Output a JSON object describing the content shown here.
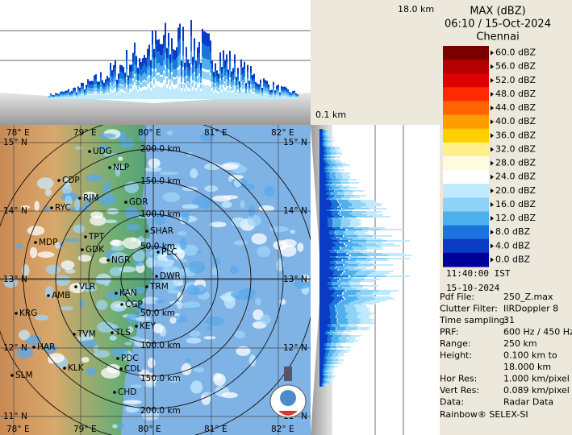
{
  "header": {
    "title": "MAX (dBZ)",
    "datetime": "06:10 / 15-Oct-2024",
    "station": "Chennai"
  },
  "profile_labels": {
    "top_height": "18.0 km",
    "bottom_height": "0.1 km"
  },
  "legend": {
    "entries": [
      {
        "label": "60.0 dBZ",
        "color": "#7a0000"
      },
      {
        "label": "56.0 dBZ",
        "color": "#b40000"
      },
      {
        "label": "52.0 dBZ",
        "color": "#e00000"
      },
      {
        "label": "48.0 dBZ",
        "color": "#ff2a00"
      },
      {
        "label": "44.0 dBZ",
        "color": "#ff6400"
      },
      {
        "label": "40.0 dBZ",
        "color": "#ff9c00"
      },
      {
        "label": "36.0 dBZ",
        "color": "#ffd000"
      },
      {
        "label": "32.0 dBZ",
        "color": "#fff08c"
      },
      {
        "label": "28.0 dBZ",
        "color": "#fffbe0"
      },
      {
        "label": "24.0 dBZ",
        "color": "#ffffff"
      },
      {
        "label": "20.0 dBZ",
        "color": "#bfe9ff"
      },
      {
        "label": "16.0 dBZ",
        "color": "#8fd2f7"
      },
      {
        "label": "12.0 dBZ",
        "color": "#4fb0ee"
      },
      {
        "label": "8.0 dBZ",
        "color": "#1a74db"
      },
      {
        "label": "4.0 dBZ",
        "color": "#0a3bc4"
      },
      {
        "label": "0.0 dBZ",
        "color": "#00009a"
      }
    ]
  },
  "time": "11:40:00  IST",
  "date": "15-10-2024",
  "info": [
    [
      "Pdf File:",
      "250_Z.max"
    ],
    [
      "Clutter Filter:",
      "IIRDoppler 8"
    ],
    [
      "Time sampling:",
      "31"
    ],
    [
      "PRF:",
      "600 Hz / 450 Hz"
    ],
    [
      "Range:",
      "250 km"
    ],
    [
      "Height:",
      "0.100 km to"
    ],
    [
      "",
      "18.000 km"
    ],
    [
      "Hor Res:",
      "1.000 km/pixel"
    ],
    [
      "Vert Res:",
      "0.089 km/pixel"
    ],
    [
      "Data:",
      "Radar Data"
    ]
  ],
  "footer": "Rainbow® SELEX-SI",
  "map": {
    "longitudes": [
      "78° E",
      "79° E",
      "80° E",
      "81° E",
      "82° E"
    ],
    "latitudes": [
      "15° N",
      "14° N",
      "13° N",
      "12° N",
      "11° N"
    ],
    "ranges": [
      "50.0 km",
      "100.0 km",
      "150.0 km",
      "200.0 km"
    ],
    "places": [
      "UDG",
      "NLP",
      "CDP",
      "RJM",
      "GDR",
      "RYC",
      "TPT",
      "SHAR",
      "MDP",
      "GDK",
      "NGR",
      "PLC",
      "DWR",
      "VLR",
      "TRM",
      "KAN",
      "AMB",
      "CGP",
      "KRG",
      "TVM",
      "KEY",
      "TLS",
      "HAR",
      "PDC",
      "KLK",
      "CDL",
      "SLM",
      "CHD"
    ]
  }
}
